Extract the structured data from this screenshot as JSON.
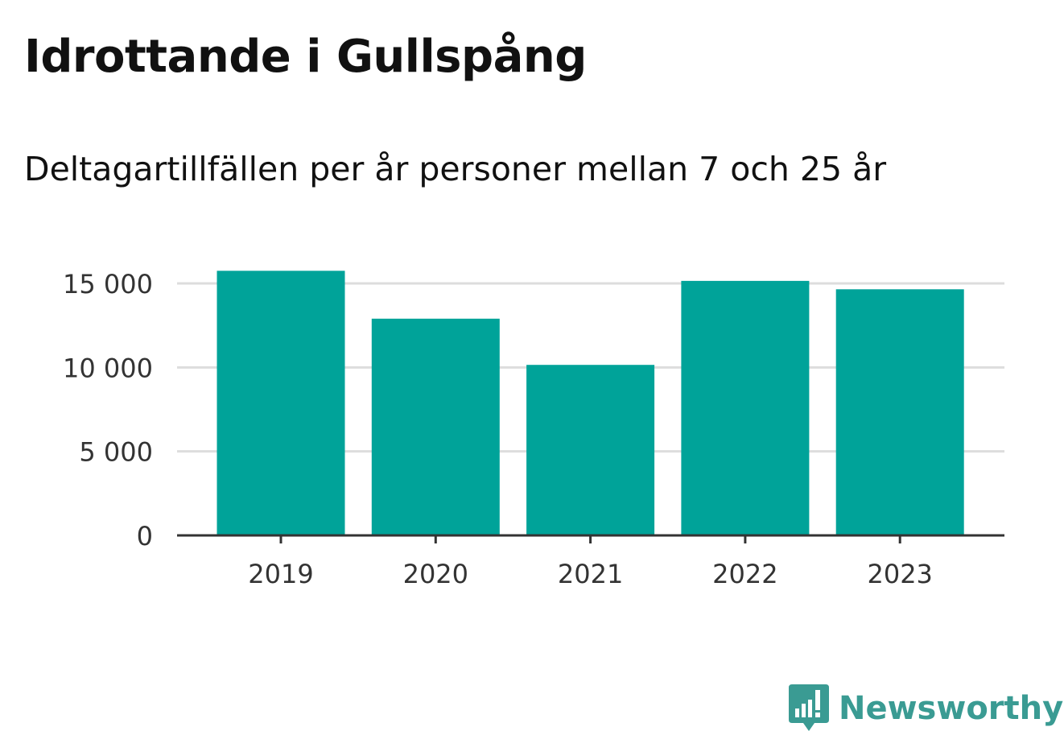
{
  "title": "Idrottande i Gullspång",
  "subtitle": "Deltagartillfällen per år personer mellan 7 och 25 år",
  "brand": {
    "name": "Newsworthy",
    "icon": "newsworthy-logo-icon",
    "color": "#3a9b93"
  },
  "colors": {
    "bar": "#00a399",
    "grid": "#dddddd",
    "axis": "#333333"
  },
  "chart_data": {
    "type": "bar",
    "categories": [
      "2019",
      "2020",
      "2021",
      "2022",
      "2023"
    ],
    "values": [
      15750,
      12900,
      10150,
      15150,
      14650
    ],
    "yticks": [
      0,
      5000,
      10000,
      15000
    ],
    "ytick_labels": [
      "0",
      "5 000",
      "10 000",
      "15 000"
    ],
    "ylim": [
      0,
      15000
    ],
    "xlabel": "",
    "ylabel": "",
    "grid": true,
    "legend": "none"
  }
}
